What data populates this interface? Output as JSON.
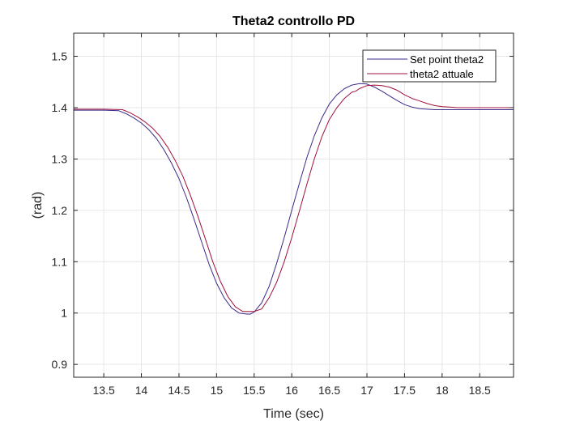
{
  "chart_data": {
    "type": "line",
    "title": "Theta2 controllo PD",
    "xlabel": "Time (sec)",
    "ylabel": "(rad)",
    "xlim": [
      13.1,
      18.95
    ],
    "ylim": [
      0.875,
      1.545
    ],
    "xticks": [
      13.5,
      14,
      14.5,
      15,
      15.5,
      16,
      16.5,
      17,
      17.5,
      18,
      18.5
    ],
    "xtick_labels": [
      "13.5",
      "14",
      "14.5",
      "15",
      "15.5",
      "16",
      "16.5",
      "17",
      "17.5",
      "18",
      "18.5"
    ],
    "yticks": [
      0.9,
      1.0,
      1.1,
      1.2,
      1.3,
      1.4,
      1.5
    ],
    "ytick_labels": [
      "0.9",
      "1",
      "1.1",
      "1.2",
      "1.3",
      "1.4",
      "1.5"
    ],
    "grid": true,
    "legend_position": "top-right",
    "series": [
      {
        "name": "Set point theta2",
        "color": "#3a2a8c",
        "x": [
          13.1,
          13.5,
          13.7,
          13.8,
          13.9,
          14.0,
          14.1,
          14.2,
          14.3,
          14.4,
          14.5,
          14.6,
          14.7,
          14.8,
          14.9,
          15.0,
          15.1,
          15.2,
          15.3,
          15.4,
          15.45,
          15.5,
          15.6,
          15.7,
          15.8,
          15.9,
          16.0,
          16.1,
          16.2,
          16.3,
          16.4,
          16.5,
          16.6,
          16.7,
          16.8,
          16.9,
          17.0,
          17.1,
          17.2,
          17.3,
          17.4,
          17.5,
          17.6,
          17.7,
          17.8,
          17.9,
          18.0,
          18.1,
          18.2,
          18.5,
          18.95
        ],
        "y": [
          1.395,
          1.395,
          1.394,
          1.388,
          1.38,
          1.37,
          1.357,
          1.34,
          1.318,
          1.292,
          1.262,
          1.225,
          1.183,
          1.139,
          1.095,
          1.058,
          1.03,
          1.01,
          1.0,
          0.998,
          0.998,
          1.002,
          1.02,
          1.052,
          1.097,
          1.147,
          1.2,
          1.252,
          1.302,
          1.345,
          1.38,
          1.407,
          1.425,
          1.437,
          1.444,
          1.447,
          1.446,
          1.44,
          1.432,
          1.423,
          1.414,
          1.406,
          1.401,
          1.398,
          1.397,
          1.396,
          1.396,
          1.396,
          1.396,
          1.396,
          1.396
        ]
      },
      {
        "name": "theta2 attuale",
        "color": "#a0103c",
        "x": [
          13.1,
          13.5,
          13.75,
          13.85,
          13.95,
          14.05,
          14.15,
          14.25,
          14.35,
          14.45,
          14.55,
          14.65,
          14.75,
          14.85,
          14.95,
          15.05,
          15.15,
          15.25,
          15.35,
          15.45,
          15.5,
          15.6,
          15.7,
          15.8,
          15.9,
          16.0,
          16.1,
          16.2,
          16.3,
          16.4,
          16.5,
          16.6,
          16.7,
          16.8,
          16.85,
          16.9,
          17.0,
          17.1,
          17.2,
          17.3,
          17.4,
          17.5,
          17.6,
          17.7,
          17.8,
          17.9,
          18.0,
          18.1,
          18.2,
          18.5,
          18.95
        ],
        "y": [
          1.397,
          1.397,
          1.396,
          1.39,
          1.382,
          1.372,
          1.36,
          1.344,
          1.323,
          1.297,
          1.267,
          1.23,
          1.189,
          1.145,
          1.1,
          1.062,
          1.032,
          1.012,
          1.003,
          1.003,
          1.003,
          1.008,
          1.03,
          1.06,
          1.1,
          1.147,
          1.198,
          1.25,
          1.3,
          1.343,
          1.377,
          1.4,
          1.418,
          1.43,
          1.432,
          1.437,
          1.443,
          1.444,
          1.443,
          1.44,
          1.434,
          1.425,
          1.418,
          1.413,
          1.408,
          1.404,
          1.402,
          1.401,
          1.4,
          1.4,
          1.4
        ]
      }
    ]
  }
}
